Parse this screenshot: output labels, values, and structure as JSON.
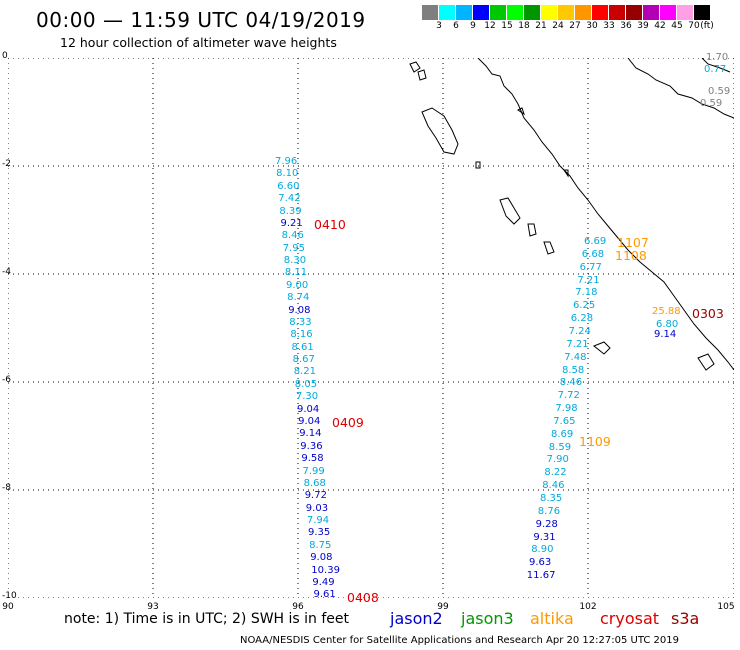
{
  "title": "00:00 — 11:59 UTC 04/19/2019",
  "subtitle": "12 hour collection of altimeter wave heights",
  "colorbar": {
    "colors": [
      "#7f7f7f",
      "#00ffff",
      "#00b4ff",
      "#0000ff",
      "#00c800",
      "#00ff00",
      "#009600",
      "#ffff00",
      "#ffc800",
      "#ff9600",
      "#ff0000",
      "#c80000",
      "#960000",
      "#b400b4",
      "#ff00ff",
      "#ffa0e6",
      "#000000"
    ],
    "labels": [
      "3",
      "6",
      "9",
      "12",
      "15",
      "18",
      "21",
      "24",
      "27",
      "30",
      "33",
      "36",
      "39",
      "42",
      "45",
      "70",
      "(ft)"
    ]
  },
  "axes": {
    "x_ticks": [
      "90",
      "93",
      "96",
      "99",
      "102",
      "105"
    ],
    "y_ticks": [
      "0",
      "-2",
      "-4",
      "-6",
      "-8",
      "-10"
    ]
  },
  "satellite_colors": {
    "jason2": "#0000cc",
    "jason3": "#009900",
    "altika": "#ff9900",
    "cryosat": "#dd0000",
    "s3a": "#990000",
    "cyan": "#00aadd",
    "gray": "#808080"
  },
  "tracks": {
    "west": [
      {
        "v": "7.96",
        "c": "cyan"
      },
      {
        "v": "8.10",
        "c": "cyan"
      },
      {
        "v": "6.60",
        "c": "cyan"
      },
      {
        "v": "7.42",
        "c": "cyan"
      },
      {
        "v": "8.39",
        "c": "cyan"
      },
      {
        "v": "9.21",
        "c": "jason2"
      },
      {
        "v": "8.46",
        "c": "cyan"
      },
      {
        "v": "7.95",
        "c": "cyan"
      },
      {
        "v": "8.30",
        "c": "cyan"
      },
      {
        "v": "8.11",
        "c": "cyan"
      },
      {
        "v": "9.00",
        "c": "cyan"
      },
      {
        "v": "8.74",
        "c": "cyan"
      },
      {
        "v": "9.08",
        "c": "jason2"
      },
      {
        "v": "8.33",
        "c": "cyan"
      },
      {
        "v": "8.16",
        "c": "cyan"
      },
      {
        "v": "8.61",
        "c": "cyan"
      },
      {
        "v": "8.67",
        "c": "cyan"
      },
      {
        "v": "8.21",
        "c": "cyan"
      },
      {
        "v": "8.05",
        "c": "cyan"
      },
      {
        "v": "7.30",
        "c": "cyan"
      },
      {
        "v": "9.04",
        "c": "jason2"
      },
      {
        "v": "9.04",
        "c": "jason2"
      },
      {
        "v": "9.14",
        "c": "jason2"
      },
      {
        "v": "9.36",
        "c": "jason2"
      },
      {
        "v": "9.58",
        "c": "jason2"
      },
      {
        "v": "7.99",
        "c": "cyan"
      },
      {
        "v": "8.68",
        "c": "cyan"
      },
      {
        "v": "9.72",
        "c": "jason2"
      },
      {
        "v": "9.03",
        "c": "jason2"
      },
      {
        "v": "7.94",
        "c": "cyan"
      },
      {
        "v": "9.35",
        "c": "jason2"
      },
      {
        "v": "8.75",
        "c": "cyan"
      },
      {
        "v": "9.08",
        "c": "jason2"
      },
      {
        "v": "10.39",
        "c": "jason2"
      },
      {
        "v": "9.49",
        "c": "jason2"
      },
      {
        "v": "9.61",
        "c": "jason2"
      }
    ],
    "east": [
      {
        "v": "6.69",
        "c": "cyan"
      },
      {
        "v": "6.68",
        "c": "cyan"
      },
      {
        "v": "6.77",
        "c": "cyan"
      },
      {
        "v": "7.21",
        "c": "cyan"
      },
      {
        "v": "7.18",
        "c": "cyan"
      },
      {
        "v": "6.25",
        "c": "cyan"
      },
      {
        "v": "6.28",
        "c": "cyan"
      },
      {
        "v": "7.24",
        "c": "cyan"
      },
      {
        "v": "7.21",
        "c": "cyan"
      },
      {
        "v": "7.48",
        "c": "cyan"
      },
      {
        "v": "8.58",
        "c": "cyan"
      },
      {
        "v": "8.46",
        "c": "cyan"
      },
      {
        "v": "7.72",
        "c": "cyan"
      },
      {
        "v": "7.98",
        "c": "cyan"
      },
      {
        "v": "7.65",
        "c": "cyan"
      },
      {
        "v": "8.69",
        "c": "cyan"
      },
      {
        "v": "8.59",
        "c": "cyan"
      },
      {
        "v": "7.90",
        "c": "cyan"
      },
      {
        "v": "8.22",
        "c": "cyan"
      },
      {
        "v": "8.46",
        "c": "cyan"
      },
      {
        "v": "8.35",
        "c": "cyan"
      },
      {
        "v": "8.76",
        "c": "cyan"
      },
      {
        "v": "9.28",
        "c": "jason2"
      },
      {
        "v": "9.31",
        "c": "jason2"
      },
      {
        "v": "8.90",
        "c": "cyan"
      },
      {
        "v": "9.63",
        "c": "jason2"
      },
      {
        "v": "11.67",
        "c": "jason2"
      }
    ],
    "corner": [
      {
        "v": "1.70",
        "c": "gray"
      },
      {
        "v": "0.77",
        "c": "cyan"
      },
      {
        "v": "0.59",
        "c": "gray"
      },
      {
        "v": "0.59",
        "c": "gray"
      }
    ],
    "extra": [
      {
        "v": "25.88",
        "c": "altika"
      },
      {
        "v": "6.80",
        "c": "cyan"
      },
      {
        "v": "9.14",
        "c": "jason2"
      }
    ]
  },
  "pass_times": [
    {
      "t": "0410",
      "c": "cryosat"
    },
    {
      "t": "0409",
      "c": "cryosat"
    },
    {
      "t": "0408",
      "c": "cryosat"
    },
    {
      "t": "1107",
      "c": "altika"
    },
    {
      "t": "1108",
      "c": "altika"
    },
    {
      "t": "1109",
      "c": "altika"
    },
    {
      "t": "0303",
      "c": "s3a"
    }
  ],
  "note": "note: 1) Time is in UTC; 2) SWH is in feet",
  "legend": [
    {
      "name": "jason2",
      "c": "jason2"
    },
    {
      "name": "jason3",
      "c": "jason3"
    },
    {
      "name": "altika",
      "c": "altika"
    },
    {
      "name": "cryosat",
      "c": "cryosat"
    },
    {
      "name": "s3a",
      "c": "s3a"
    }
  ],
  "footer": "NOAA/NESDIS Center for Satellite Applications and Research     Apr 20 12:27:05 UTC 2019"
}
